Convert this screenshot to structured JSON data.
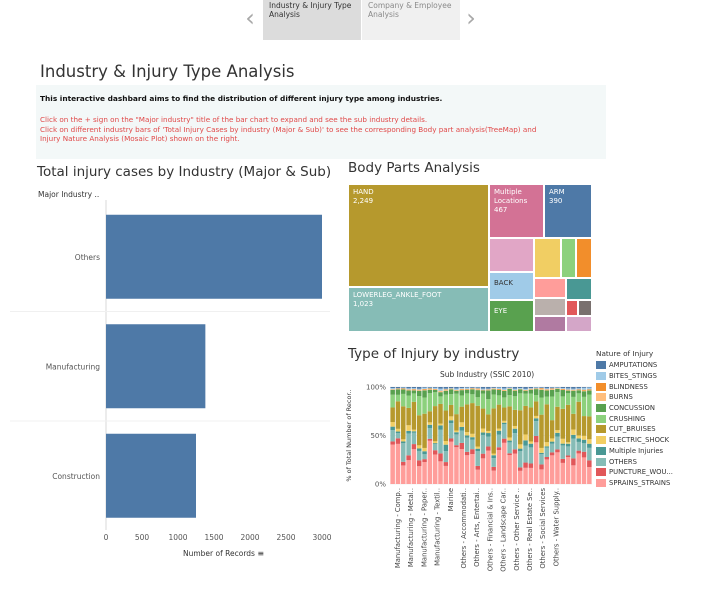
{
  "story": {
    "tabs": [
      {
        "label": "Industry & Injury Type Analysis",
        "active": true
      },
      {
        "label": "Company & Employee Analysis",
        "active": false
      }
    ],
    "prev_icon": "chevron-left-icon",
    "next_icon": "chevron-right-icon"
  },
  "dashboard": {
    "title": "Industry & Injury Type Analysis",
    "intro": "This interactive dashbard aims to find the distribution of different injury type among industries.",
    "instructions": [
      "Click on the + sign on the \"Major industry\" title of the bar chart to expand and see the sub industry details.",
      "Click on different industry bars of 'Total Injury Cases by industry (Major & Sub)' to see the corresponding Body part analysis(TreeMap) and",
      "Injury Nature Analysis (Mosaic Plot) shown on the right."
    ]
  },
  "bar_chart": {
    "title": "Total injury cases by Industry (Major & Sub)",
    "row_header": "Major Industry ..",
    "x_axis_label": "Number of Records",
    "sort_icon": "sort-descending-icon"
  },
  "treemap": {
    "title": "Body Parts Analysis"
  },
  "mosaic": {
    "title": "Type of Injury by industry",
    "column_header": "Sub Industry (SSIC 2010)",
    "y_axis_label": "% of Total Number of Recor..",
    "y_ticks": [
      "100%",
      "50%",
      "0%"
    ],
    "x_labels": [
      "Manufacturing - Comp..",
      "Manufacturing - Metal..",
      "Manufacturing - Paper..",
      "Manufacturing - Textil..",
      "Marine",
      "Others - Accommodati..",
      "Others - Arts, Entertai..",
      "Others - Financial & Ins..",
      "Others - Landscape Car..",
      "Others - Other Service ..",
      "Others - Real Estate Se..",
      "Others - Social Services",
      "Others - Water Supply.."
    ]
  },
  "legend": {
    "title": "Nature of Injury",
    "items": [
      {
        "label": "AMPUTATIONS",
        "color": "#4e79a7"
      },
      {
        "label": "BITES_STINGS",
        "color": "#a0cbe8"
      },
      {
        "label": "BLINDNESS",
        "color": "#f28e2b"
      },
      {
        "label": "BURNS",
        "color": "#ffbe7d"
      },
      {
        "label": "CONCUSSION",
        "color": "#59a14f"
      },
      {
        "label": "CRUSHING",
        "color": "#8cd17d"
      },
      {
        "label": "CUT_BRUISES",
        "color": "#b6992d"
      },
      {
        "label": "ELECTRIC_SHOCK",
        "color": "#f1ce63"
      },
      {
        "label": "Multiple Injuries",
        "color": "#499894"
      },
      {
        "label": "OTHERS",
        "color": "#86bcb6"
      },
      {
        "label": "PUNCTURE_WOU...",
        "color": "#e15759"
      },
      {
        "label": "SPRAINS_STRAINS",
        "color": "#ff9d9a"
      }
    ]
  },
  "chart_data": [
    {
      "type": "bar",
      "orientation": "horizontal",
      "title": "Total injury cases by Industry (Major & Sub)",
      "categories": [
        "Others",
        "Manufacturing",
        "Construction"
      ],
      "values": [
        3000,
        1380,
        1250
      ],
      "xlabel": "Number of Records",
      "ylabel": "Major Industry ..",
      "x_ticks": [
        0,
        500,
        1000,
        1500,
        2000,
        2500,
        3000
      ],
      "xlim": [
        0,
        3000
      ],
      "color": "#4e79a7",
      "grid": false
    },
    {
      "type": "treemap",
      "title": "Body Parts Analysis",
      "labeled_cells": [
        {
          "label": "HAND",
          "value": 2249,
          "color": "#b6992d"
        },
        {
          "label": "LOWERLEG_ANKLE_FOOT",
          "value": 1023,
          "color": "#86bcb6"
        },
        {
          "label": "Multiple Locations",
          "value": 467,
          "color": "#d37295"
        },
        {
          "label": "ARM",
          "value": 390,
          "color": "#4e79a7"
        },
        {
          "label": "BACK",
          "color": "#a0cbe8"
        },
        {
          "label": "EYE",
          "color": "#59a14f"
        }
      ]
    },
    {
      "type": "bar",
      "stacked": "percent",
      "title": "Type of Injury by industry",
      "xlabel": "Sub Industry (SSIC 2010)",
      "ylabel": "% of Total Number of Recor..",
      "y_ticks": [
        "100%",
        "50%",
        "0%"
      ],
      "note": "100% stacked bars per sub industry, colored by Nature of Injury"
    }
  ]
}
